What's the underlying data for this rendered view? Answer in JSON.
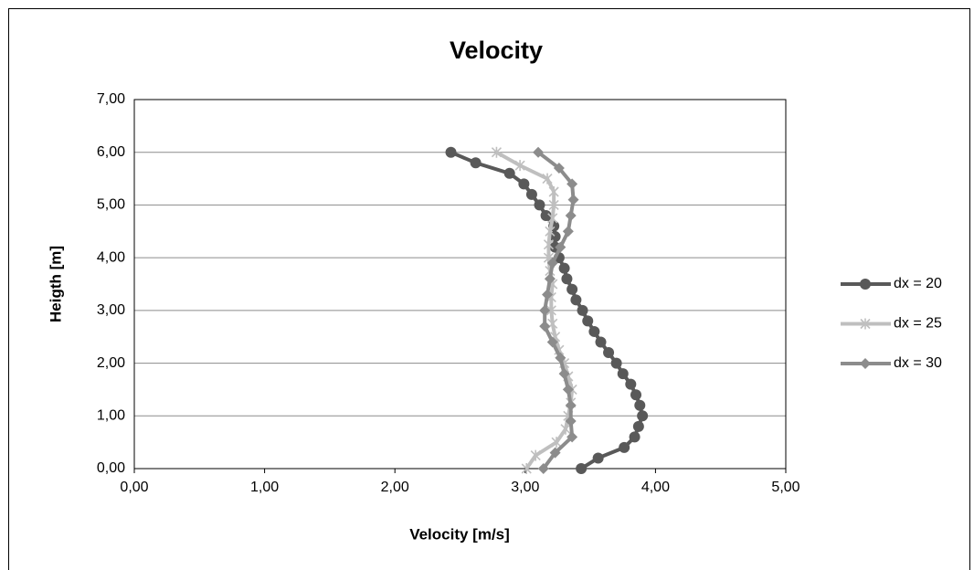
{
  "chart_data": {
    "type": "scatter-line",
    "title": "Velocity",
    "x_label": "Velocity [m/s]",
    "y_label": "Heigth [m]",
    "xlim": [
      0,
      5
    ],
    "ylim": [
      0,
      7
    ],
    "xticks": [
      {
        "value": 0,
        "label": "0,00"
      },
      {
        "value": 1,
        "label": "1,00"
      },
      {
        "value": 2,
        "label": "2,00"
      },
      {
        "value": 3,
        "label": "3,00"
      },
      {
        "value": 4,
        "label": "4,00"
      },
      {
        "value": 5,
        "label": "5,00"
      }
    ],
    "yticks": [
      {
        "value": 0,
        "label": "0,00"
      },
      {
        "value": 1,
        "label": "1,00"
      },
      {
        "value": 2,
        "label": "2,00"
      },
      {
        "value": 3,
        "label": "3,00"
      },
      {
        "value": 4,
        "label": "4,00"
      },
      {
        "value": 5,
        "label": "5,00"
      },
      {
        "value": 6,
        "label": "6,00"
      },
      {
        "value": 7,
        "label": "7,00"
      }
    ],
    "grid": true,
    "legend": "right",
    "series": [
      {
        "name": "dx = 20",
        "color": "#595959",
        "marker": "circle",
        "x": [
          3.43,
          3.56,
          3.76,
          3.84,
          3.87,
          3.9,
          3.88,
          3.85,
          3.81,
          3.75,
          3.7,
          3.64,
          3.58,
          3.53,
          3.48,
          3.44,
          3.39,
          3.36,
          3.32,
          3.3,
          3.26,
          3.23,
          3.23,
          3.22,
          3.16,
          3.11,
          3.05,
          2.99,
          2.88,
          2.62,
          2.43
        ],
        "values": [
          0,
          0.2,
          0.4,
          0.6,
          0.8,
          1,
          1.2,
          1.4,
          1.6,
          1.8,
          2,
          2.2,
          2.4,
          2.6,
          2.8,
          3,
          3.2,
          3.4,
          3.6,
          3.8,
          4,
          4.2,
          4.4,
          4.6,
          4.8,
          5,
          5.2,
          5.4,
          5.6,
          5.8,
          6
        ]
      },
      {
        "name": "dx = 25",
        "color": "#bfbfbf",
        "marker": "star",
        "x": [
          3.01,
          3.08,
          3.24,
          3.31,
          3.33,
          3.35,
          3.36,
          3.33,
          3.3,
          3.26,
          3.23,
          3.21,
          3.2,
          3.2,
          3.21,
          3.19,
          3.18,
          3.18,
          3.19,
          3.21,
          3.22,
          3.22,
          3.17,
          2.96,
          2.78
        ],
        "values": [
          0,
          0.25,
          0.5,
          0.75,
          1,
          1.25,
          1.5,
          1.75,
          2,
          2.25,
          2.5,
          2.75,
          3,
          3.25,
          3.5,
          3.75,
          4,
          4.25,
          4.5,
          4.75,
          5,
          5.25,
          5.5,
          5.75,
          6
        ]
      },
      {
        "name": "dx = 30",
        "color": "#8c8c8c",
        "marker": "diamond",
        "x": [
          3.14,
          3.23,
          3.36,
          3.35,
          3.35,
          3.33,
          3.3,
          3.27,
          3.21,
          3.15,
          3.15,
          3.17,
          3.19,
          3.21,
          3.27,
          3.33,
          3.35,
          3.37,
          3.36,
          3.26,
          3.1
        ],
        "values": [
          0,
          0.3,
          0.6,
          0.9,
          1.2,
          1.5,
          1.8,
          2.1,
          2.4,
          2.7,
          3,
          3.3,
          3.6,
          3.9,
          4.2,
          4.5,
          4.8,
          5.1,
          5.4,
          5.7,
          6
        ]
      }
    ]
  }
}
